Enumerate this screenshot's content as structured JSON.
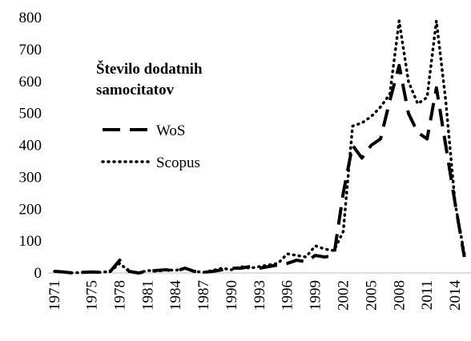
{
  "chart_data": {
    "type": "line",
    "legend_title": "Število dodatnih samocitatov",
    "x": [
      1971,
      1972,
      1973,
      1974,
      1975,
      1976,
      1977,
      1978,
      1979,
      1980,
      1981,
      1982,
      1983,
      1984,
      1985,
      1986,
      1987,
      1988,
      1989,
      1990,
      1991,
      1992,
      1993,
      1994,
      1995,
      1996,
      1997,
      1998,
      1999,
      2000,
      2001,
      2002,
      2003,
      2004,
      2005,
      2006,
      2007,
      2008,
      2009,
      2010,
      2011,
      2012,
      2013,
      2014,
      2015
    ],
    "series": [
      {
        "name": "WoS",
        "color": "#000000",
        "style": "dashed",
        "values": [
          5,
          3,
          0,
          2,
          3,
          2,
          5,
          40,
          5,
          0,
          5,
          8,
          10,
          5,
          15,
          5,
          2,
          5,
          10,
          15,
          15,
          20,
          15,
          20,
          25,
          30,
          40,
          35,
          55,
          50,
          55,
          250,
          400,
          360,
          400,
          420,
          540,
          650,
          500,
          440,
          420,
          580,
          400,
          220,
          50
        ]
      },
      {
        "name": "Scopus",
        "color": "#000000",
        "style": "dotted",
        "values": [
          5,
          2,
          0,
          2,
          3,
          2,
          5,
          30,
          5,
          0,
          8,
          5,
          10,
          8,
          15,
          5,
          2,
          8,
          15,
          10,
          20,
          15,
          20,
          25,
          30,
          60,
          55,
          50,
          85,
          75,
          70,
          130,
          460,
          470,
          490,
          520,
          560,
          790,
          600,
          530,
          550,
          790,
          540,
          220,
          60
        ]
      }
    ],
    "xlim": [
      1971,
      2015
    ],
    "xticks": [
      1971,
      1975,
      1978,
      1981,
      1984,
      1987,
      1990,
      1993,
      1996,
      1999,
      2002,
      2005,
      2008,
      2011,
      2014
    ],
    "ylim": [
      0,
      800
    ],
    "yticks": [
      0,
      100,
      200,
      300,
      400,
      500,
      600,
      700,
      800
    ],
    "legend": "upper left",
    "grid": false
  }
}
